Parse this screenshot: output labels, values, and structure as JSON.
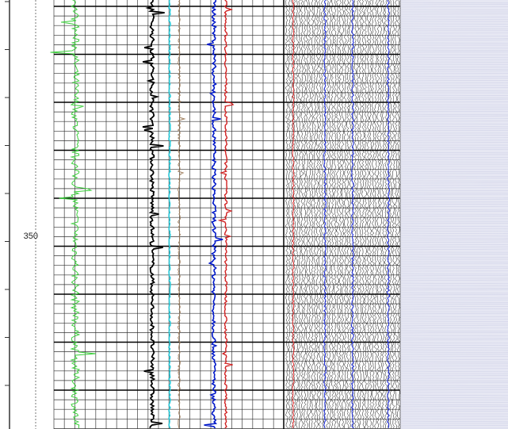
{
  "depth_label": "350"
}
